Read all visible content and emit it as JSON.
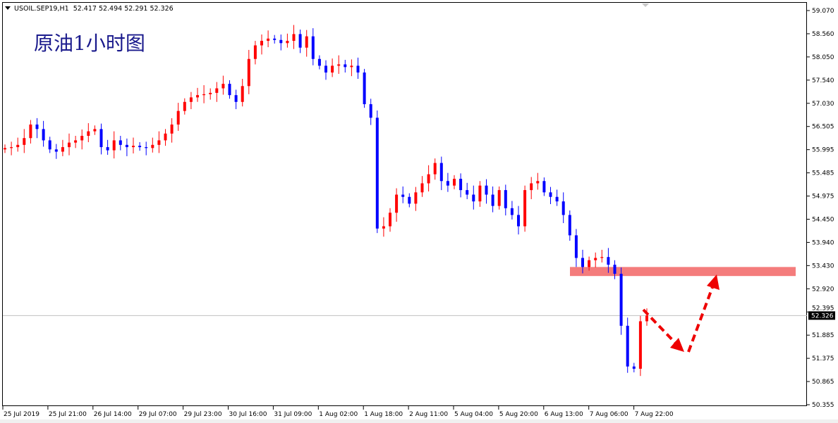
{
  "header": {
    "symbol": "USOIL.SEP19,H1",
    "ohlc": "52.417 52.494 52.291 52.326"
  },
  "annotation_title": "原油1小时图",
  "colors": {
    "bull": "#ff0000",
    "bear": "#0000ff",
    "zone": "#f47c7c",
    "arrow": "#ee0000",
    "price_line": "#c0c0c0"
  },
  "chart_data": {
    "type": "candlestick",
    "ylim": [
      50.355,
      59.07
    ],
    "y_ticks": [
      "59.070",
      "58.560",
      "58.050",
      "57.540",
      "57.030",
      "56.505",
      "55.995",
      "55.485",
      "54.975",
      "54.450",
      "53.940",
      "53.430",
      "52.920",
      "52.395",
      "51.885",
      "51.375",
      "50.865",
      "50.355"
    ],
    "x_ticks": [
      "25 Jul 2019",
      "25 Jul 21:00",
      "26 Jul 14:00",
      "29 Jul 07:00",
      "29 Jul 23:00",
      "30 Jul 16:00",
      "31 Jul 09:00",
      "1 Aug 02:00",
      "1 Aug 18:00",
      "2 Aug 11:00",
      "5 Aug 04:00",
      "5 Aug 20:00",
      "6 Aug 13:00",
      "7 Aug 06:00",
      "7 Aug 22:00"
    ],
    "current_price": "52.326",
    "closes": [
      56.03,
      56.05,
      56.1,
      56.25,
      56.55,
      56.45,
      56.2,
      56.0,
      55.95,
      56.05,
      56.15,
      56.2,
      56.3,
      56.4,
      56.45,
      56.05,
      55.98,
      56.2,
      56.1,
      56.05,
      56.08,
      56.05,
      56.03,
      56.1,
      56.2,
      56.35,
      56.55,
      56.85,
      57.05,
      57.15,
      57.2,
      57.22,
      57.25,
      57.35,
      57.45,
      57.2,
      57.05,
      57.4,
      58.0,
      58.3,
      58.4,
      58.45,
      58.42,
      58.35,
      58.4,
      58.55,
      58.25,
      58.5,
      58.0,
      57.85,
      57.7,
      57.85,
      57.88,
      57.82,
      57.85,
      57.7,
      57.0,
      56.7,
      54.25,
      54.3,
      54.6,
      55.0,
      54.95,
      54.8,
      55.05,
      55.25,
      55.45,
      55.7,
      55.3,
      55.2,
      55.35,
      55.1,
      55.0,
      54.85,
      55.2,
      55.0,
      54.75,
      55.1,
      54.7,
      54.55,
      54.3,
      55.1,
      55.25,
      55.3,
      55.05,
      54.95,
      54.85,
      54.55,
      54.1,
      53.6,
      53.4,
      53.55,
      53.6,
      53.62,
      53.45,
      53.25,
      52.1,
      51.2,
      51.15,
      52.2,
      52.326
    ],
    "resistance_zone": [
      53.2,
      53.4
    ]
  }
}
